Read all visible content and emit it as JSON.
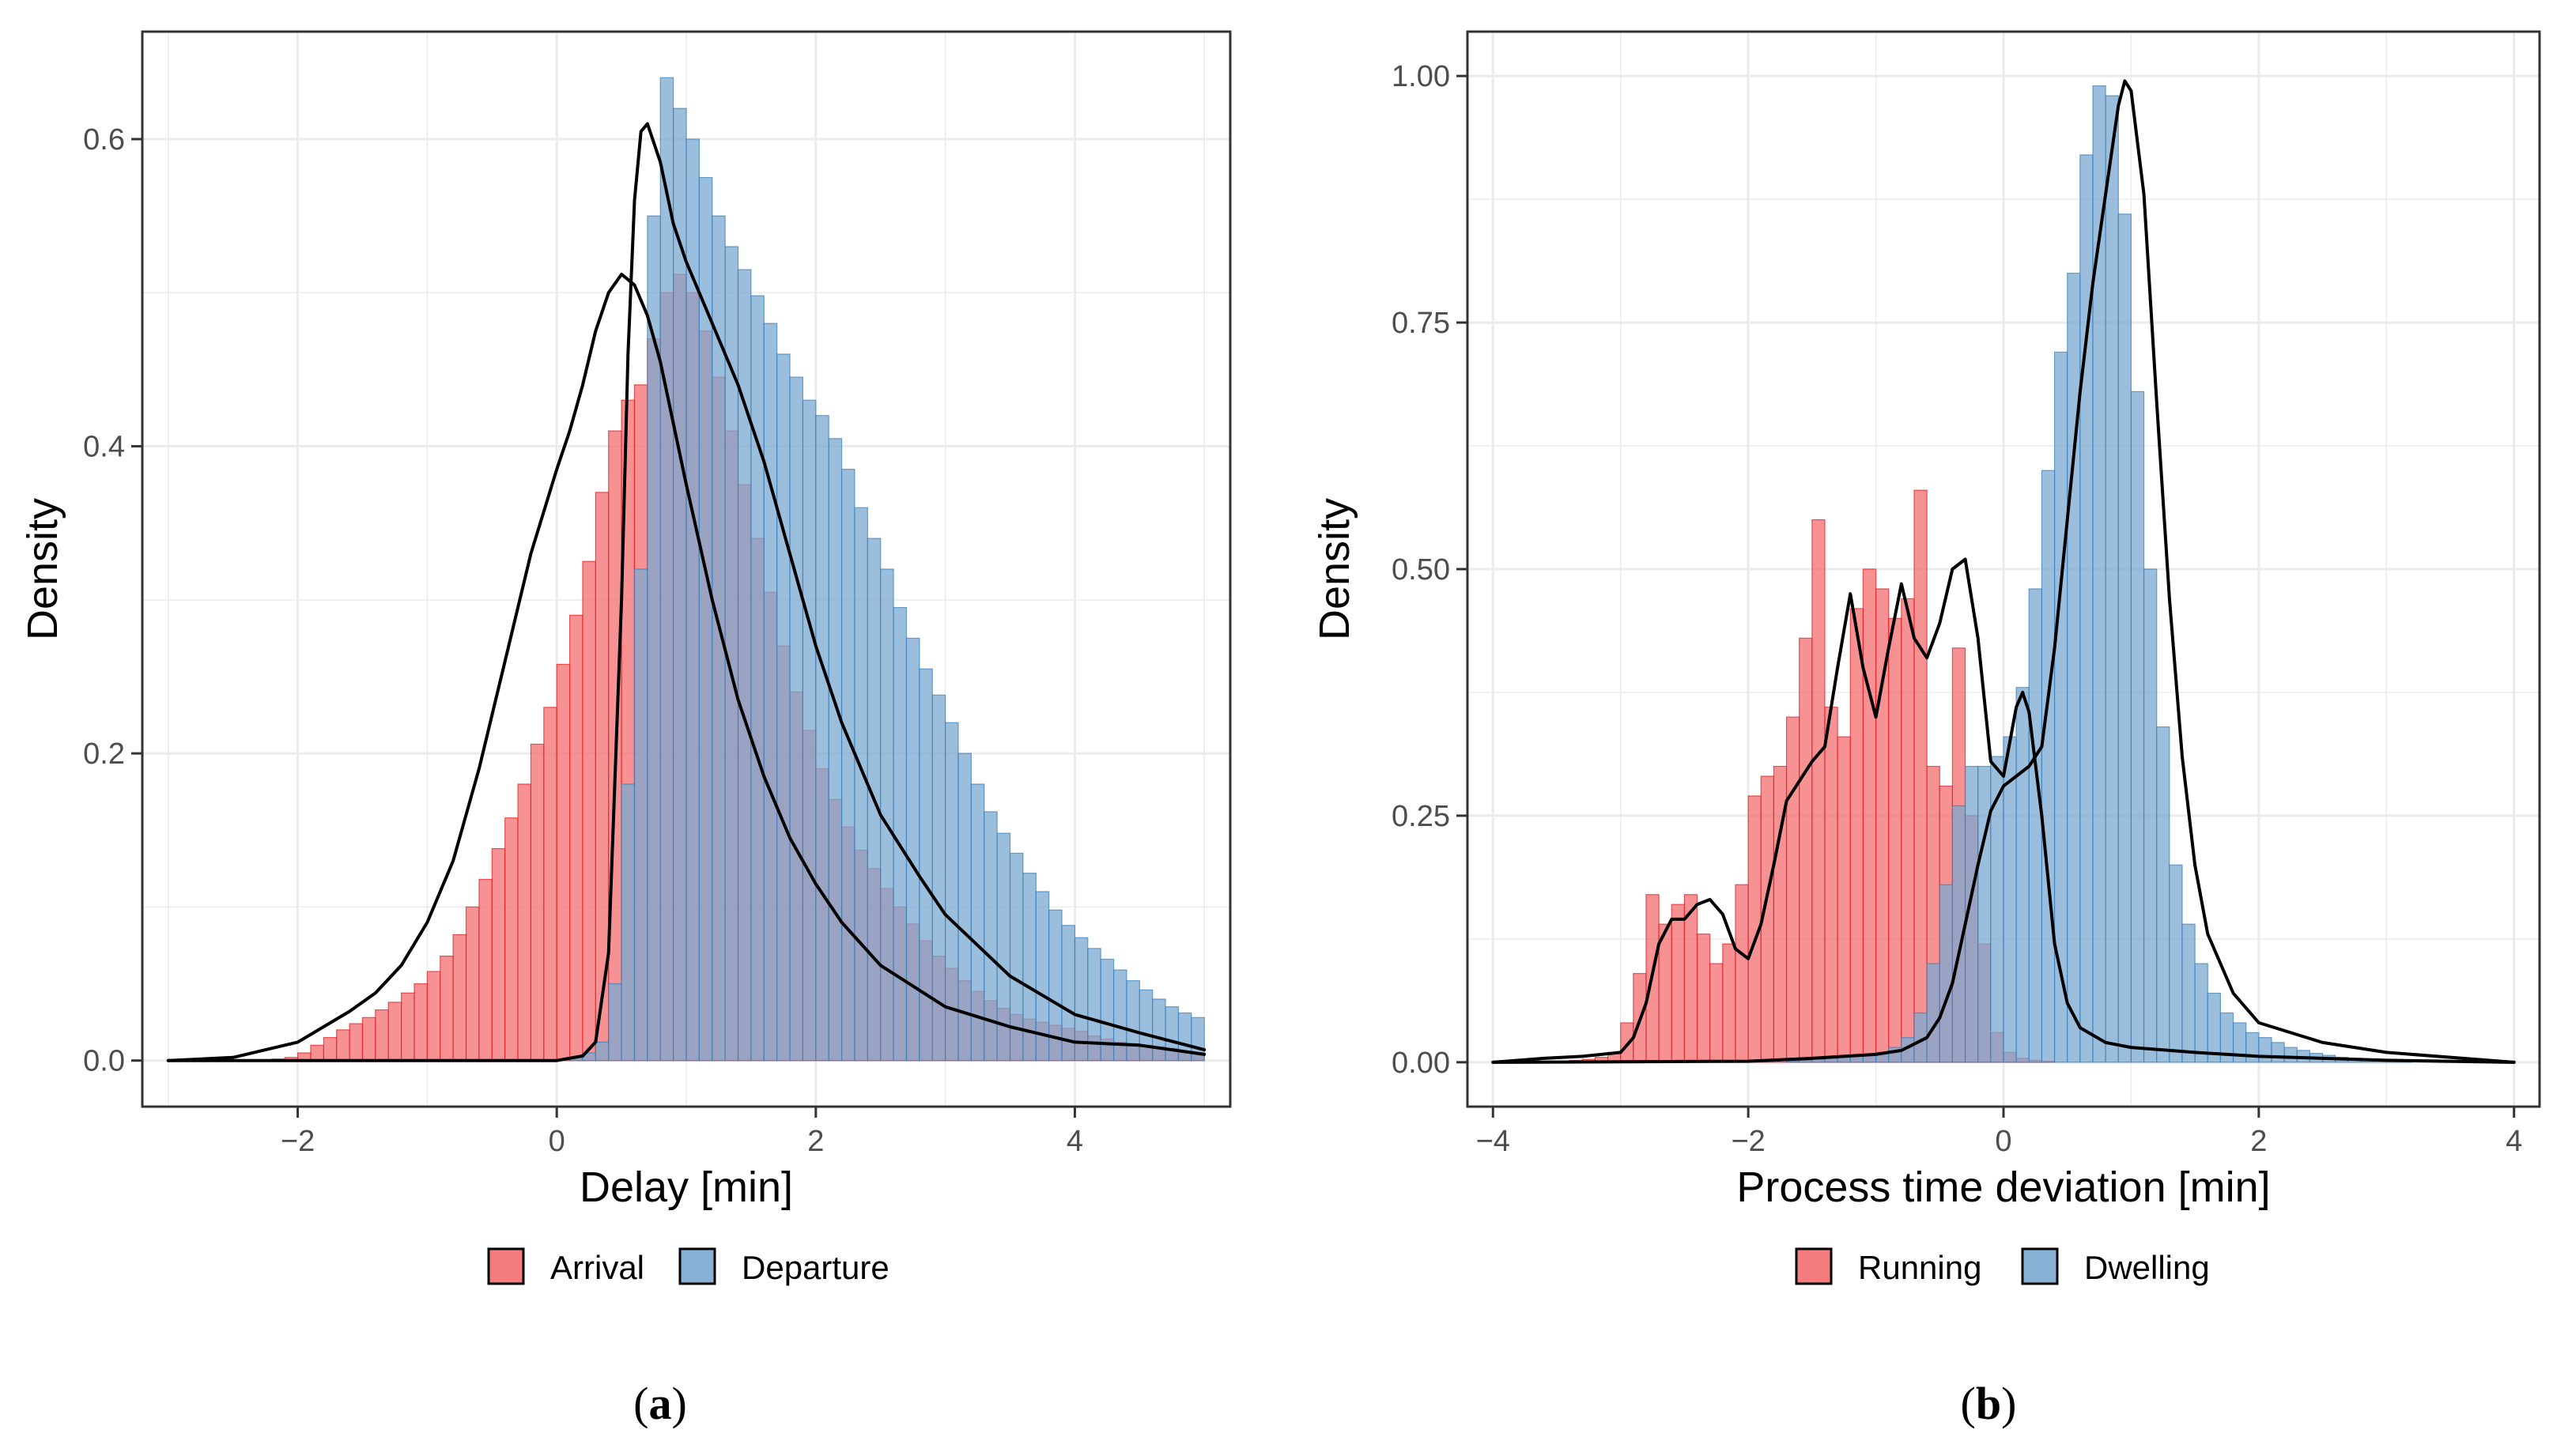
{
  "chart_data": [
    {
      "type": "histogram_density",
      "panel_label": "(a)",
      "caption_letter": "a",
      "xlabel": "Delay [min]",
      "ylabel": "Density",
      "xlim": [
        -3.2,
        5.2
      ],
      "ylim": [
        -0.03,
        0.67
      ],
      "xticks": [
        -2,
        0,
        2,
        4
      ],
      "yticks": [
        0.0,
        0.2,
        0.4,
        0.6
      ],
      "xtick_labels": [
        "−2",
        "0",
        "2",
        "4"
      ],
      "ytick_labels": [
        "0.0",
        "0.2",
        "0.4",
        "0.6"
      ],
      "bin_width": 0.1,
      "legend": [
        "Arrival",
        "Departure"
      ],
      "series": [
        {
          "name": "Arrival",
          "color": "#E41A1C",
          "fill": "#F36E6F",
          "bins_start": -3.0,
          "values": [
            0,
            0,
            0,
            0,
            0,
            0,
            0,
            0,
            0.001,
            0.002,
            0.005,
            0.01,
            0.015,
            0.02,
            0.024,
            0.028,
            0.033,
            0.038,
            0.044,
            0.05,
            0.058,
            0.068,
            0.082,
            0.1,
            0.118,
            0.138,
            0.158,
            0.18,
            0.206,
            0.23,
            0.258,
            0.29,
            0.325,
            0.37,
            0.41,
            0.43,
            0.44,
            0.47,
            0.5,
            0.512,
            0.5,
            0.475,
            0.445,
            0.41,
            0.375,
            0.34,
            0.305,
            0.27,
            0.24,
            0.215,
            0.19,
            0.17,
            0.152,
            0.137,
            0.125,
            0.112,
            0.1,
            0.089,
            0.078,
            0.068,
            0.06,
            0.052,
            0.045,
            0.039,
            0.034,
            0.03,
            0.027,
            0.025,
            0.023,
            0.021,
            0.019,
            0.016,
            0.014,
            0.012,
            0.011,
            0.01,
            0.009,
            0.008,
            0.006,
            0.005
          ]
        },
        {
          "name": "Departure",
          "color": "#377EB8",
          "fill": "#7BA8D1",
          "bins_start": -3.0,
          "values": [
            0,
            0,
            0,
            0,
            0,
            0,
            0,
            0,
            0,
            0,
            0,
            0,
            0,
            0,
            0,
            0,
            0,
            0,
            0,
            0,
            0,
            0,
            0,
            0,
            0,
            0,
            0,
            0,
            0,
            0,
            0,
            0.002,
            0.005,
            0.012,
            0.05,
            0.18,
            0.32,
            0.55,
            0.64,
            0.62,
            0.6,
            0.575,
            0.55,
            0.53,
            0.515,
            0.498,
            0.48,
            0.46,
            0.445,
            0.43,
            0.42,
            0.405,
            0.385,
            0.36,
            0.34,
            0.32,
            0.295,
            0.275,
            0.255,
            0.238,
            0.22,
            0.2,
            0.18,
            0.162,
            0.148,
            0.135,
            0.122,
            0.11,
            0.098,
            0.088,
            0.08,
            0.073,
            0.066,
            0.059,
            0.052,
            0.046,
            0.04,
            0.035,
            0.031,
            0.028
          ]
        }
      ],
      "density_curves": [
        {
          "name": "Arrival",
          "x": [
            -3.0,
            -2.5,
            -2.0,
            -1.8,
            -1.6,
            -1.4,
            -1.2,
            -1.0,
            -0.8,
            -0.6,
            -0.4,
            -0.2,
            0.0,
            0.1,
            0.2,
            0.3,
            0.4,
            0.5,
            0.6,
            0.7,
            0.8,
            0.9,
            1.0,
            1.2,
            1.4,
            1.6,
            1.8,
            2.0,
            2.2,
            2.5,
            3.0,
            3.5,
            4.0,
            4.5,
            5.0
          ],
          "y": [
            0.0,
            0.002,
            0.012,
            0.022,
            0.032,
            0.044,
            0.062,
            0.09,
            0.13,
            0.19,
            0.26,
            0.33,
            0.385,
            0.41,
            0.44,
            0.475,
            0.5,
            0.512,
            0.505,
            0.485,
            0.455,
            0.415,
            0.375,
            0.3,
            0.235,
            0.185,
            0.145,
            0.115,
            0.09,
            0.062,
            0.035,
            0.022,
            0.012,
            0.01,
            0.004
          ]
        },
        {
          "name": "Departure",
          "x": [
            -3.0,
            0.0,
            0.2,
            0.3,
            0.4,
            0.5,
            0.55,
            0.6,
            0.65,
            0.7,
            0.8,
            0.9,
            1.0,
            1.2,
            1.4,
            1.6,
            1.8,
            2.0,
            2.2,
            2.5,
            2.8,
            3.0,
            3.5,
            4.0,
            4.5,
            5.0
          ],
          "y": [
            0.0,
            0.0,
            0.003,
            0.012,
            0.07,
            0.3,
            0.46,
            0.56,
            0.605,
            0.61,
            0.585,
            0.545,
            0.52,
            0.48,
            0.44,
            0.39,
            0.33,
            0.27,
            0.22,
            0.16,
            0.12,
            0.095,
            0.055,
            0.03,
            0.018,
            0.007
          ]
        }
      ]
    },
    {
      "type": "histogram_density",
      "panel_label": "(b)",
      "caption_letter": "b",
      "xlabel": "Process time deviation [min]",
      "ylabel": "Density",
      "xlim": [
        -4.2,
        4.2
      ],
      "ylim": [
        -0.045,
        1.045
      ],
      "xticks": [
        -4,
        -2,
        0,
        2,
        4
      ],
      "yticks": [
        0.0,
        0.25,
        0.5,
        0.75,
        1.0
      ],
      "xtick_labels": [
        "−4",
        "−2",
        "0",
        "2",
        "4"
      ],
      "ytick_labels": [
        "0.00",
        "0.25",
        "0.50",
        "0.75",
        "1.00"
      ],
      "bin_width": 0.1,
      "legend": [
        "Running",
        "Dwelling"
      ],
      "series": [
        {
          "name": "Running",
          "color": "#E41A1C",
          "fill": "#F36E6F",
          "bins_start": -4.0,
          "values": [
            0,
            0,
            0,
            0,
            0,
            0.001,
            0.002,
            0.003,
            0.005,
            0.01,
            0.04,
            0.09,
            0.17,
            0.14,
            0.16,
            0.17,
            0.13,
            0.1,
            0.12,
            0.18,
            0.27,
            0.29,
            0.3,
            0.35,
            0.43,
            0.55,
            0.36,
            0.33,
            0.46,
            0.5,
            0.48,
            0.45,
            0.47,
            0.58,
            0.3,
            0.28,
            0.42,
            0.25,
            0.12,
            0.03,
            0.01,
            0.004,
            0.002,
            0.001,
            0,
            0,
            0,
            0,
            0,
            0,
            0,
            0,
            0,
            0,
            0,
            0,
            0,
            0,
            0,
            0,
            0,
            0,
            0,
            0,
            0,
            0,
            0,
            0,
            0,
            0,
            0,
            0,
            0,
            0,
            0,
            0,
            0,
            0,
            0,
            0
          ]
        },
        {
          "name": "Dwelling",
          "color": "#377EB8",
          "fill": "#7BA8D1",
          "bins_start": -4.0,
          "values": [
            0,
            0,
            0,
            0,
            0,
            0,
            0,
            0,
            0,
            0,
            0,
            0,
            0,
            0,
            0,
            0,
            0,
            0,
            0,
            0,
            0,
            0,
            0,
            0.001,
            0.002,
            0.003,
            0.004,
            0.005,
            0.006,
            0.008,
            0.01,
            0.015,
            0.025,
            0.05,
            0.1,
            0.18,
            0.26,
            0.3,
            0.3,
            0.31,
            0.33,
            0.38,
            0.48,
            0.6,
            0.72,
            0.8,
            0.92,
            0.99,
            0.98,
            0.86,
            0.68,
            0.5,
            0.34,
            0.2,
            0.14,
            0.1,
            0.07,
            0.05,
            0.04,
            0.03,
            0.025,
            0.02,
            0.015,
            0.012,
            0.009,
            0.007,
            0.005,
            0.004,
            0.003,
            0.002,
            0.001,
            0.001,
            0,
            0,
            0,
            0,
            0,
            0,
            0,
            0
          ]
        }
      ],
      "density_curves": [
        {
          "name": "Running",
          "x": [
            -4.0,
            -3.6,
            -3.3,
            -3.0,
            -2.9,
            -2.8,
            -2.7,
            -2.6,
            -2.5,
            -2.4,
            -2.3,
            -2.2,
            -2.1,
            -2.0,
            -1.9,
            -1.8,
            -1.7,
            -1.6,
            -1.5,
            -1.4,
            -1.3,
            -1.2,
            -1.1,
            -1.0,
            -0.9,
            -0.8,
            -0.7,
            -0.6,
            -0.5,
            -0.4,
            -0.3,
            -0.2,
            -0.1,
            0.0,
            0.1,
            0.15,
            0.2,
            0.3,
            0.4,
            0.5,
            0.6,
            0.8,
            1.0,
            1.5,
            2.0,
            3.0,
            4.0
          ],
          "y": [
            0.0,
            0.004,
            0.006,
            0.01,
            0.025,
            0.06,
            0.12,
            0.145,
            0.145,
            0.16,
            0.165,
            0.15,
            0.115,
            0.105,
            0.14,
            0.2,
            0.265,
            0.285,
            0.305,
            0.32,
            0.4,
            0.475,
            0.4,
            0.35,
            0.42,
            0.485,
            0.43,
            0.41,
            0.445,
            0.5,
            0.51,
            0.43,
            0.305,
            0.29,
            0.36,
            0.375,
            0.355,
            0.25,
            0.12,
            0.06,
            0.035,
            0.02,
            0.015,
            0.01,
            0.006,
            0.002,
            0.0
          ]
        },
        {
          "name": "Dwelling",
          "x": [
            -4.0,
            -2.0,
            -1.5,
            -1.0,
            -0.8,
            -0.6,
            -0.5,
            -0.4,
            -0.3,
            -0.2,
            -0.1,
            0.0,
            0.1,
            0.2,
            0.3,
            0.4,
            0.5,
            0.6,
            0.7,
            0.8,
            0.9,
            0.95,
            1.0,
            1.1,
            1.2,
            1.3,
            1.4,
            1.5,
            1.6,
            1.8,
            2.0,
            2.5,
            3.0,
            3.5,
            4.0
          ],
          "y": [
            0.0,
            0.001,
            0.004,
            0.008,
            0.012,
            0.025,
            0.045,
            0.08,
            0.14,
            0.2,
            0.255,
            0.28,
            0.29,
            0.3,
            0.32,
            0.42,
            0.55,
            0.68,
            0.79,
            0.88,
            0.97,
            0.995,
            0.985,
            0.88,
            0.67,
            0.47,
            0.31,
            0.2,
            0.13,
            0.07,
            0.04,
            0.02,
            0.01,
            0.005,
            0.0
          ]
        }
      ]
    }
  ]
}
